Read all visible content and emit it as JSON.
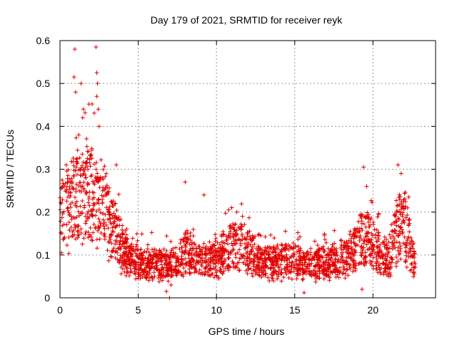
{
  "chart_data": {
    "type": "scatter",
    "title": "Day 179 of 2021, SRMTID for receiver reyk",
    "xlabel": "GPS time / hours",
    "ylabel": "SRMTID / TECUs",
    "xlim": [
      0,
      24
    ],
    "ylim": [
      0,
      0.6
    ],
    "x_ticks": [
      0,
      5,
      10,
      15,
      20
    ],
    "y_ticks": [
      0,
      0.1,
      0.2,
      0.3,
      0.4,
      0.5,
      0.6
    ],
    "x_tick_labels": [
      "0",
      "5",
      "10",
      "15",
      "20"
    ],
    "y_tick_labels": [
      "0",
      "0.1",
      "0.2",
      "0.3",
      "0.4",
      "0.5",
      "0.6"
    ],
    "grid": true,
    "marker": "+",
    "color": "#e00000",
    "series": [
      {
        "name": "SRMTID",
        "profile": [
          [
            0.0,
            0.17
          ],
          [
            0.5,
            0.21
          ],
          [
            1.0,
            0.24
          ],
          [
            1.5,
            0.25
          ],
          [
            2.0,
            0.24
          ],
          [
            2.5,
            0.23
          ],
          [
            3.0,
            0.19
          ],
          [
            3.5,
            0.15
          ],
          [
            4.0,
            0.11
          ],
          [
            4.5,
            0.09
          ],
          [
            5.0,
            0.085
          ],
          [
            6.0,
            0.08
          ],
          [
            7.0,
            0.075
          ],
          [
            7.5,
            0.08
          ],
          [
            8.0,
            0.11
          ],
          [
            8.5,
            0.095
          ],
          [
            9.0,
            0.085
          ],
          [
            10.0,
            0.09
          ],
          [
            11.0,
            0.12
          ],
          [
            11.5,
            0.12
          ],
          [
            12.0,
            0.11
          ],
          [
            13.0,
            0.08
          ],
          [
            14.0,
            0.085
          ],
          [
            15.0,
            0.085
          ],
          [
            16.0,
            0.08
          ],
          [
            17.0,
            0.08
          ],
          [
            18.0,
            0.09
          ],
          [
            18.5,
            0.1
          ],
          [
            19.0,
            0.12
          ],
          [
            19.5,
            0.15
          ],
          [
            20.0,
            0.12
          ],
          [
            20.5,
            0.1
          ],
          [
            21.0,
            0.09
          ],
          [
            21.5,
            0.15
          ],
          [
            22.0,
            0.17
          ],
          [
            22.5,
            0.1
          ],
          [
            22.7,
            0.08
          ]
        ],
        "peaks": [
          [
            0.95,
            0.58
          ],
          [
            0.9,
            0.515
          ],
          [
            1.0,
            0.48
          ],
          [
            1.35,
            0.5
          ],
          [
            1.5,
            0.44
          ],
          [
            1.45,
            0.42
          ],
          [
            2.3,
            0.585
          ],
          [
            2.35,
            0.525
          ],
          [
            2.4,
            0.5
          ],
          [
            2.35,
            0.47
          ],
          [
            2.45,
            0.44
          ],
          [
            2.5,
            0.4
          ],
          [
            1.2,
            0.38
          ],
          [
            0.4,
            0.31
          ],
          [
            3.6,
            0.31
          ],
          [
            8.0,
            0.27
          ],
          [
            9.2,
            0.24
          ],
          [
            11.3,
            0.2
          ],
          [
            19.4,
            0.305
          ],
          [
            21.6,
            0.31
          ],
          [
            21.8,
            0.29
          ],
          [
            19.6,
            0.26
          ],
          [
            0.1,
            0.105
          ],
          [
            7.0,
            0.0
          ],
          [
            10.0,
            0.0
          ],
          [
            15.6,
            0.012
          ],
          [
            6.8,
            0.015
          ],
          [
            7.1,
            0.03
          ],
          [
            19.3,
            0.02
          ]
        ],
        "x_range": [
          0.0,
          22.7
        ],
        "y_range": [
          0.0,
          0.585
        ],
        "point_count": 2400
      }
    ]
  }
}
